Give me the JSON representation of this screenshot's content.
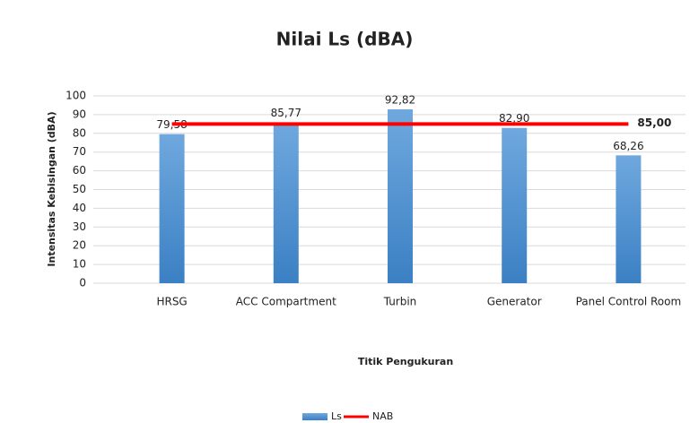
{
  "chart_data": {
    "type": "bar",
    "title": "Nilai Ls (dBA)",
    "x_label": "Titik Pengukuran",
    "y_label": "Intensitas Kebisingan (dBA)",
    "categories": [
      "HRSG",
      "ACC Compartment",
      "Turbin",
      "Generator",
      "Panel Control Room"
    ],
    "series": [
      {
        "name": "Ls",
        "type": "bar",
        "color": "#5b9bd5",
        "values": [
          79.58,
          85.77,
          92.82,
          82.9,
          68.26
        ],
        "value_labels": [
          "79,58",
          "85,77",
          "92,82",
          "82,90",
          "68,26"
        ]
      },
      {
        "name": "NAB",
        "type": "line",
        "color": "#ff0000",
        "values": [
          85,
          85,
          85,
          85,
          85
        ],
        "value_labels": [
          null,
          null,
          null,
          null,
          "85,00"
        ]
      }
    ],
    "ylim": [
      0,
      100
    ],
    "yticks": [
      0,
      10,
      20,
      30,
      40,
      50,
      60,
      70,
      80,
      90,
      100
    ],
    "grid": true,
    "legend": "bottom"
  }
}
